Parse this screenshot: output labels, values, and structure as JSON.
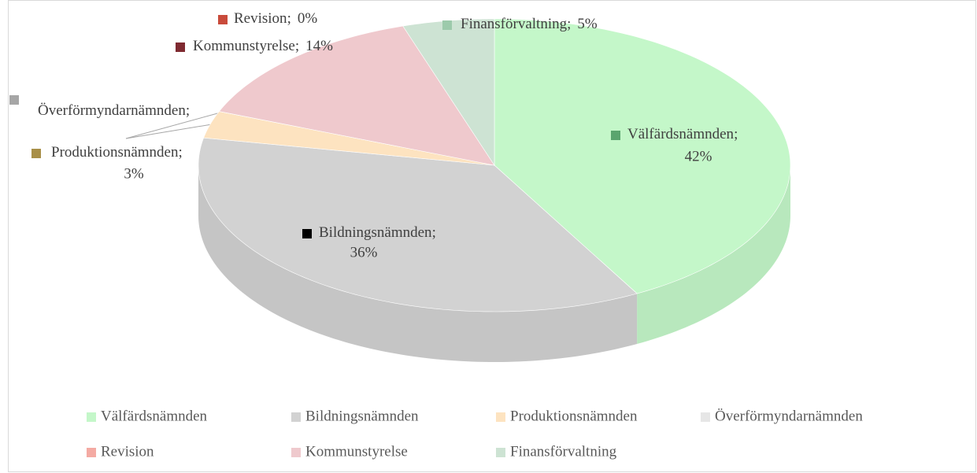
{
  "chart_data": {
    "type": "pie3d",
    "categories": [
      "Välfärdsnämnden",
      "Bildningsnämnden",
      "Produktionsnämnden",
      "Överförmyndarnämnden",
      "Revision",
      "Kommunstyrelse",
      "Finansförvaltning"
    ],
    "values": [
      42,
      36,
      3,
      0,
      0,
      14,
      5
    ],
    "value_labels": [
      "42%",
      "36%",
      "3%",
      null,
      "0%",
      "14%",
      "5%"
    ],
    "label_separator": ";",
    "colors": [
      "#c4f7c9",
      "#d2d2d2",
      "#fde3c0",
      "#e6e6e6",
      "#f4aaa3",
      "#efc9cd",
      "#cde3d3"
    ],
    "label_marker_colors": [
      "#5aa56e",
      "#000000",
      "#a88f48",
      "#a6a6a6",
      "#c94b3b",
      "#7f2a31",
      "#9ccaab"
    ],
    "legend": "bottom"
  }
}
